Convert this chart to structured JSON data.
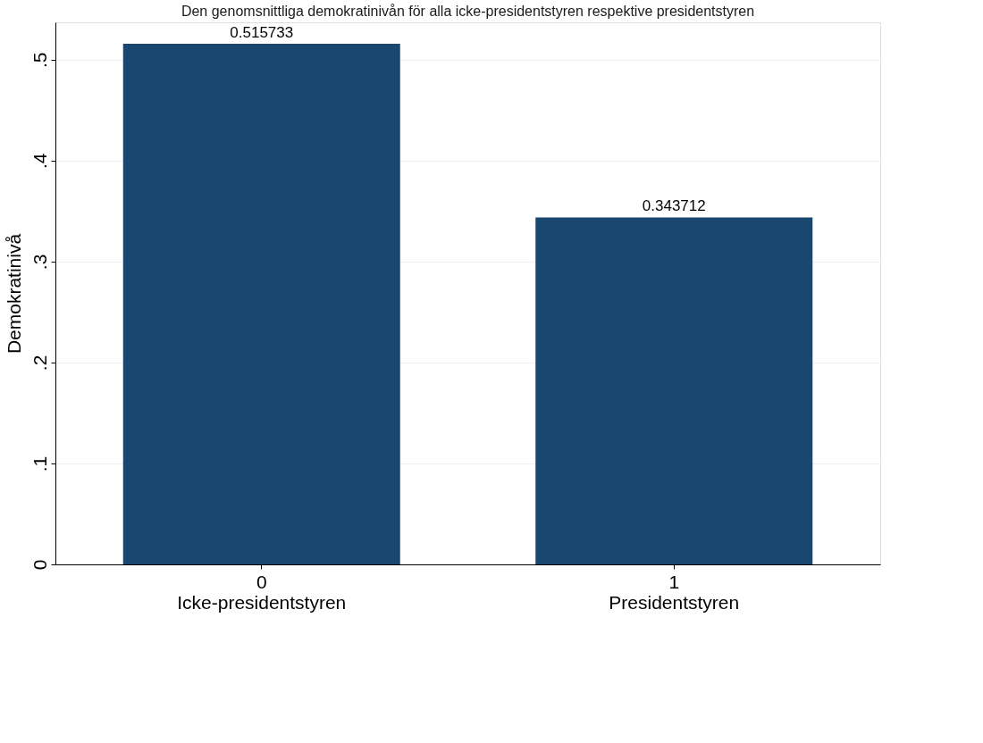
{
  "chart_data": {
    "type": "bar",
    "title": "Den genomsnittliga demokratinivån för alla icke-presidentstyren respektive presidentstyren",
    "ylabel": "Demokratinivå",
    "categories": [
      "0\nIcke-presidentstyren",
      "1\nPresidentstyren"
    ],
    "values": [
      0.515733,
      0.343712
    ],
    "color": "#1a476f",
    "data_labels": true,
    "grid": "y",
    "ylim": [
      0,
      0.537
    ],
    "yticks": [
      {
        "value": 0,
        "label": "0"
      },
      {
        "value": 0.1,
        "label": ".1"
      },
      {
        "value": 0.2,
        "label": ".2"
      },
      {
        "value": 0.3,
        "label": ".3"
      },
      {
        "value": 0.4,
        "label": ".4"
      },
      {
        "value": 0.5,
        "label": ".5"
      }
    ]
  }
}
